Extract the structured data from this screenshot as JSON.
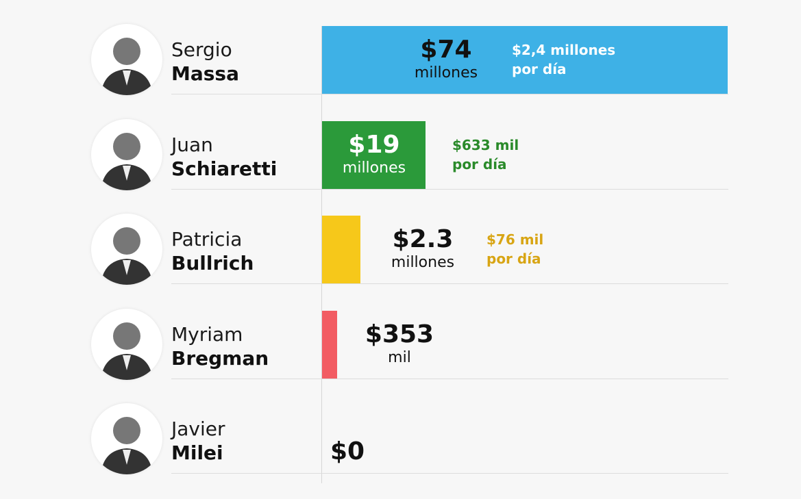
{
  "rows": [
    {
      "first_name": "Sergio",
      "last_name": "Massa",
      "amount": "$74",
      "unit": "millones",
      "per_day": "$2,4 millones",
      "per_day_unit": "por día"
    },
    {
      "first_name": "Juan",
      "last_name": "Schiaretti",
      "amount": "$19",
      "unit": "millones",
      "per_day": "$633 mil",
      "per_day_unit": "por día"
    },
    {
      "first_name": "Patricia",
      "last_name": "Bullrich",
      "amount": "$2.3",
      "unit": "millones",
      "per_day": "$76 mil",
      "per_day_unit": "por día"
    },
    {
      "first_name": "Myriam",
      "last_name": "Bregman",
      "amount": "$353",
      "unit": "mil"
    },
    {
      "first_name": "Javier",
      "last_name": "Milei",
      "amount": "$0"
    }
  ]
}
